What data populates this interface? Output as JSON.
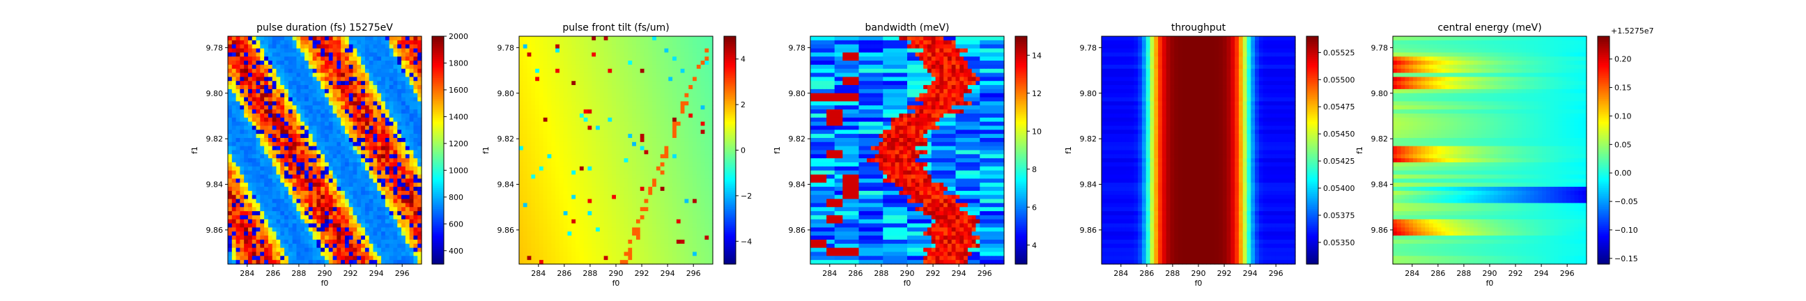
{
  "chart_data": [
    {
      "type": "heatmap",
      "title": "pulse duration (fs) 15275eV",
      "xlabel": "f0",
      "ylabel": "f1",
      "xticks": [
        "284",
        "286",
        "288",
        "290",
        "292",
        "294",
        "296"
      ],
      "yticks": [
        "9.78",
        "9.80",
        "9.82",
        "9.84",
        "9.86"
      ],
      "xlim": [
        282.5,
        297.5
      ],
      "ylim": [
        9.875,
        9.775
      ],
      "colorbar": {
        "ticks": [
          "400",
          "600",
          "800",
          "1000",
          "1200",
          "1400",
          "1600",
          "1800",
          "2000"
        ],
        "range": [
          300,
          2000
        ],
        "offset": ""
      },
      "pattern": "diagonal_bands"
    },
    {
      "type": "heatmap",
      "title": "pulse front tilt (fs/um)",
      "xlabel": "f0",
      "ylabel": "f1",
      "xticks": [
        "284",
        "286",
        "288",
        "290",
        "292",
        "294",
        "296"
      ],
      "yticks": [
        "9.78",
        "9.80",
        "9.82",
        "9.84",
        "9.86"
      ],
      "xlim": [
        282.5,
        297.5
      ],
      "ylim": [
        9.875,
        9.775
      ],
      "colorbar": {
        "ticks": [
          "−4",
          "−2",
          "0",
          "2",
          "4"
        ],
        "range": [
          -5,
          5
        ],
        "offset": ""
      },
      "pattern": "tilt_gradient"
    },
    {
      "type": "heatmap",
      "title": "bandwidth (meV)",
      "xlabel": "f0",
      "ylabel": "f1",
      "xticks": [
        "284",
        "286",
        "288",
        "290",
        "292",
        "294",
        "296"
      ],
      "yticks": [
        "9.78",
        "9.80",
        "9.82",
        "9.84",
        "9.86"
      ],
      "xlim": [
        282.5,
        297.5
      ],
      "ylim": [
        9.875,
        9.775
      ],
      "colorbar": {
        "ticks": [
          "4",
          "6",
          "8",
          "10",
          "12",
          "14"
        ],
        "range": [
          3,
          15
        ],
        "offset": ""
      },
      "pattern": "horizontal_streaks"
    },
    {
      "type": "heatmap",
      "title": "throughput",
      "xlabel": "f0",
      "ylabel": "f1",
      "xticks": [
        "284",
        "286",
        "288",
        "290",
        "292",
        "294",
        "296"
      ],
      "yticks": [
        "9.78",
        "9.80",
        "9.82",
        "9.84",
        "9.86"
      ],
      "xlim": [
        282.5,
        297.5
      ],
      "ylim": [
        9.875,
        9.775
      ],
      "colorbar": {
        "ticks": [
          "0.05350",
          "0.05375",
          "0.05400",
          "0.05425",
          "0.05450",
          "0.05475",
          "0.05500",
          "0.05525"
        ],
        "range": [
          0.0533,
          0.0554
        ],
        "offset": ""
      },
      "pattern": "vertical_gaussian"
    },
    {
      "type": "heatmap",
      "title": "central energy (meV)",
      "xlabel": "f0",
      "ylabel": "f1",
      "xticks": [
        "284",
        "286",
        "288",
        "290",
        "292",
        "294",
        "296"
      ],
      "yticks": [
        "9.78",
        "9.80",
        "9.82",
        "9.84",
        "9.86"
      ],
      "xlim": [
        282.5,
        297.5
      ],
      "ylim": [
        9.875,
        9.775
      ],
      "colorbar": {
        "ticks": [
          "−0.15",
          "−0.10",
          "−0.05",
          "0.00",
          "0.05",
          "0.10",
          "0.15",
          "0.20"
        ],
        "range": [
          -0.16,
          0.24
        ],
        "offset": "+1.5275e7"
      },
      "pattern": "row_offsets"
    }
  ]
}
